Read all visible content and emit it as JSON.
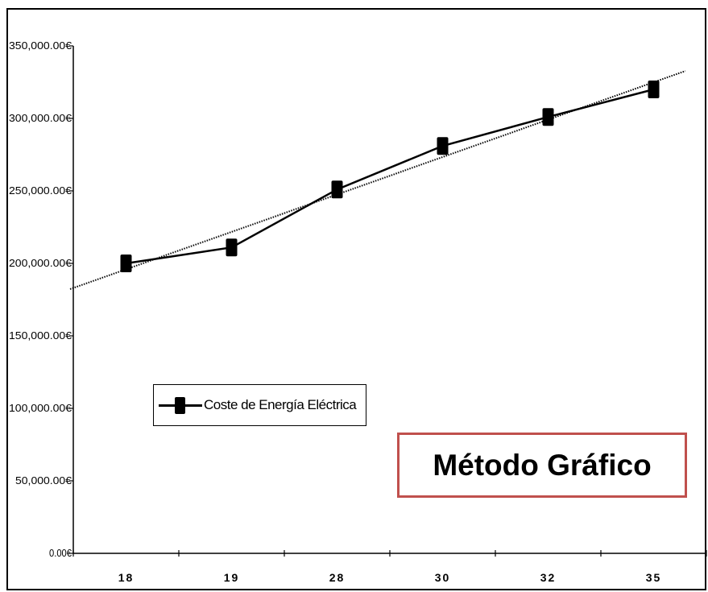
{
  "chart_data": {
    "type": "line",
    "categories": [
      "18",
      "19",
      "28",
      "30",
      "32",
      "35"
    ],
    "series": [
      {
        "name": "Coste de Energía Eléctrica",
        "values": [
          200000,
          211000,
          251000,
          281000,
          301000,
          320000
        ],
        "color": "#000000",
        "marker": "square"
      }
    ],
    "trendline": {
      "type": "linear",
      "style": "dotted",
      "color": "#000000"
    },
    "yticks": [
      0,
      50000,
      100000,
      150000,
      200000,
      250000,
      300000,
      350000
    ],
    "ytick_labels": [
      "0.00€",
      "50,000.00€",
      "100,000.00€",
      "150,000.00€",
      "200,000.00€",
      "250,000.00€",
      "300,000.00€",
      "350,000.00€"
    ],
    "ylim": [
      0,
      350000
    ],
    "grid": false,
    "legend_position": "lower-left"
  },
  "annotation": {
    "text": "Método Gráfico",
    "border_color": "#c0504d"
  }
}
